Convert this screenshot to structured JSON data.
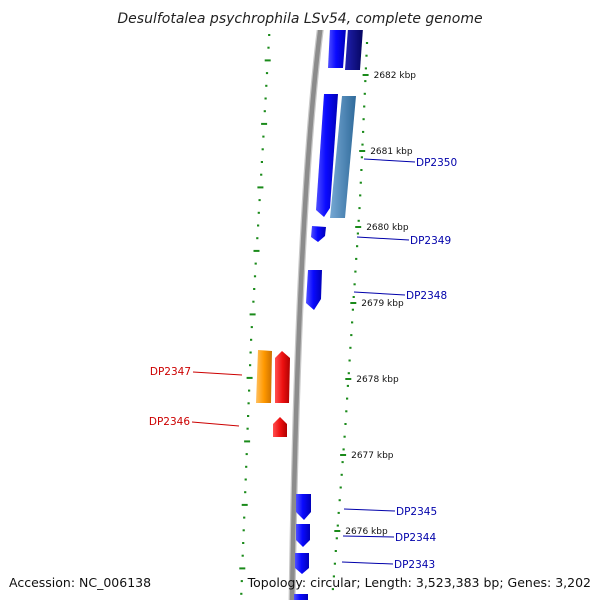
{
  "title": "Desulfotalea psychrophila LSv54, complete genome",
  "accession": "Accession: NC_006138",
  "topology": "Topology: circular; Length: 3,523,383 bp; Genes: 3,202",
  "colors": {
    "backbone": "#8c8c8c",
    "tick": "#1a8a1a",
    "forward_gene": "#0a0aff",
    "reverse_gene": "#ee1111",
    "forward_label": "#0000aa",
    "reverse_label": "#cc0000",
    "dark_blue_gene": "#0a0a90",
    "steel_blue_gene": "#4682b4",
    "orange_gene": "#ff9900"
  },
  "chart_data": {
    "type": "circular-genome-map-detail",
    "unit": "kbp",
    "visible_range_kbp": [
      2676,
      2682
    ],
    "kbp_ticks": [
      {
        "label": "2682 kbp",
        "value": 2682
      },
      {
        "label": "2681 kbp",
        "value": 2681
      },
      {
        "label": "2680 kbp",
        "value": 2680
      },
      {
        "label": "2679 kbp",
        "value": 2679
      },
      {
        "label": "2678 kbp",
        "value": 2678
      },
      {
        "label": "2677 kbp",
        "value": 2677
      },
      {
        "label": "2676 kbp",
        "value": 2676
      }
    ],
    "genes": [
      {
        "label": "DP2350",
        "strand": "forward"
      },
      {
        "label": "DP2349",
        "strand": "forward"
      },
      {
        "label": "DP2348",
        "strand": "forward"
      },
      {
        "label": "DP2347",
        "strand": "reverse"
      },
      {
        "label": "DP2346",
        "strand": "reverse"
      },
      {
        "label": "DP2345",
        "strand": "forward"
      },
      {
        "label": "DP2344",
        "strand": "forward"
      },
      {
        "label": "DP2343",
        "strand": "forward"
      }
    ]
  }
}
